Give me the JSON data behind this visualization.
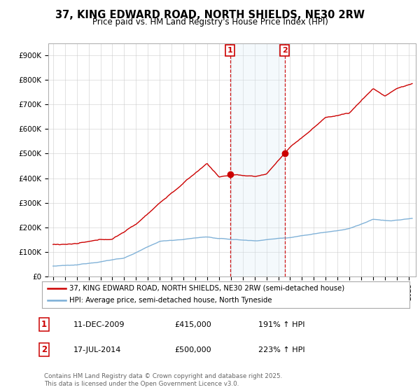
{
  "title": "37, KING EDWARD ROAD, NORTH SHIELDS, NE30 2RW",
  "subtitle": "Price paid vs. HM Land Registry's House Price Index (HPI)",
  "ylim": [
    0,
    950000
  ],
  "yticks": [
    0,
    100000,
    200000,
    300000,
    400000,
    500000,
    600000,
    700000,
    800000,
    900000
  ],
  "ytick_labels": [
    "£0",
    "£100K",
    "£200K",
    "£300K",
    "£400K",
    "£500K",
    "£600K",
    "£700K",
    "£800K",
    "£900K"
  ],
  "xlim_start": 1994.6,
  "xlim_end": 2025.6,
  "transaction1_date": 2009.94,
  "transaction1_price": 415000,
  "transaction1_label": "1",
  "transaction2_date": 2014.54,
  "transaction2_price": 500000,
  "transaction2_label": "2",
  "property_line_color": "#cc0000",
  "hpi_line_color": "#7aaed6",
  "vline_color": "#cc0000",
  "shade_color": "#daeaf7",
  "legend_property": "37, KING EDWARD ROAD, NORTH SHIELDS, NE30 2RW (semi-detached house)",
  "legend_hpi": "HPI: Average price, semi-detached house, North Tyneside",
  "table_row1": [
    "1",
    "11-DEC-2009",
    "£415,000",
    "191% ↑ HPI"
  ],
  "table_row2": [
    "2",
    "17-JUL-2014",
    "£500,000",
    "223% ↑ HPI"
  ],
  "footer": "Contains HM Land Registry data © Crown copyright and database right 2025.\nThis data is licensed under the Open Government Licence v3.0.",
  "background_color": "#ffffff",
  "grid_color": "#cccccc"
}
